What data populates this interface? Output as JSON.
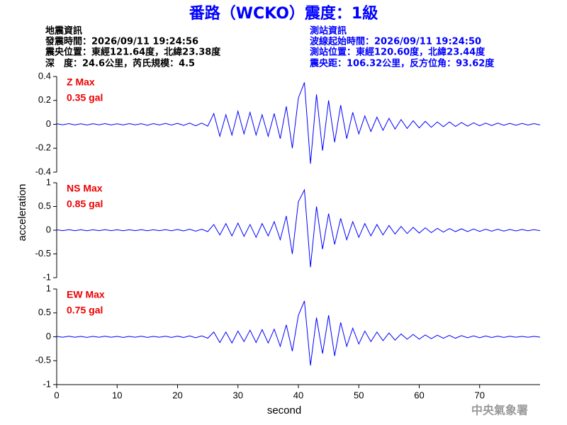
{
  "header": {
    "title": "番路（WCKO）震度：1級",
    "left": [
      "地震資訊",
      "發震時間：2026/09/11 19:24:56",
      "震央位置：東經121.64度，北緯23.38度",
      "深　度：24.6公里，芮氏規模：4.5"
    ],
    "right": [
      "測站資訊",
      "波線起始時間：2026/09/11 19:24:50",
      "測站位置：東經120.60度，北緯23.44度",
      "震央距：106.32公里，反方位角：93.62度"
    ]
  },
  "chart_data": [
    {
      "type": "line",
      "color": "#0000ff",
      "annotation_color": "#ee0000",
      "max_label": "Z Max",
      "max_value_label": "0.35 gal",
      "xlim": [
        0,
        80
      ],
      "ylim": [
        -0.4,
        0.4
      ],
      "yticks": [
        0.4,
        0.2,
        0,
        -0.2,
        -0.4
      ],
      "x": [
        0,
        1,
        2,
        3,
        4,
        5,
        6,
        7,
        8,
        9,
        10,
        11,
        12,
        13,
        14,
        15,
        16,
        17,
        18,
        19,
        20,
        21,
        22,
        23,
        24,
        25,
        26,
        27,
        28,
        29,
        30,
        31,
        32,
        33,
        34,
        35,
        36,
        37,
        38,
        39,
        40,
        41,
        42,
        43,
        44,
        45,
        46,
        47,
        48,
        49,
        50,
        51,
        52,
        53,
        54,
        55,
        56,
        57,
        58,
        59,
        60,
        61,
        62,
        63,
        64,
        65,
        66,
        67,
        68,
        69,
        70,
        71,
        72,
        73,
        74,
        75,
        76,
        77,
        78,
        79,
        80
      ],
      "values": [
        0.005,
        -0.004,
        0.006,
        -0.005,
        0.004,
        -0.006,
        0.005,
        -0.004,
        0.006,
        -0.005,
        0.004,
        -0.005,
        0.006,
        -0.004,
        0.005,
        -0.008,
        0.006,
        -0.005,
        0.007,
        -0.006,
        0.008,
        -0.009,
        0.01,
        -0.012,
        0.01,
        -0.015,
        0.09,
        -0.1,
        0.08,
        -0.09,
        0.11,
        -0.08,
        0.1,
        -0.09,
        0.08,
        -0.1,
        0.09,
        -0.12,
        0.15,
        -0.2,
        0.22,
        0.35,
        -0.33,
        0.25,
        -0.22,
        0.2,
        -0.15,
        0.16,
        -0.12,
        0.1,
        -0.08,
        0.07,
        -0.06,
        0.06,
        -0.05,
        0.05,
        -0.04,
        0.04,
        -0.035,
        0.03,
        -0.03,
        0.025,
        -0.025,
        0.02,
        -0.02,
        0.02,
        -0.018,
        0.015,
        -0.015,
        0.012,
        -0.012,
        0.01,
        -0.01,
        0.01,
        -0.008,
        0.008,
        -0.008,
        0.007,
        -0.006,
        0.006,
        -0.005
      ]
    },
    {
      "type": "line",
      "color": "#0000ff",
      "annotation_color": "#ee0000",
      "max_label": "NS Max",
      "max_value_label": "0.85 gal",
      "ylabel": "acceleration",
      "xlim": [
        0,
        80
      ],
      "ylim": [
        -1,
        1
      ],
      "yticks": [
        1,
        0.5,
        0,
        -0.5,
        -1
      ],
      "x": [
        0,
        1,
        2,
        3,
        4,
        5,
        6,
        7,
        8,
        9,
        10,
        11,
        12,
        13,
        14,
        15,
        16,
        17,
        18,
        19,
        20,
        21,
        22,
        23,
        24,
        25,
        26,
        27,
        28,
        29,
        30,
        31,
        32,
        33,
        34,
        35,
        36,
        37,
        38,
        39,
        40,
        41,
        42,
        43,
        44,
        45,
        46,
        47,
        48,
        49,
        50,
        51,
        52,
        53,
        54,
        55,
        56,
        57,
        58,
        59,
        60,
        61,
        62,
        63,
        64,
        65,
        66,
        67,
        68,
        69,
        70,
        71,
        72,
        73,
        74,
        75,
        76,
        77,
        78,
        79,
        80
      ],
      "values": [
        0.01,
        -0.01,
        0.012,
        -0.01,
        0.01,
        -0.012,
        0.01,
        -0.01,
        0.012,
        -0.01,
        0.01,
        -0.012,
        0.01,
        -0.01,
        0.012,
        -0.012,
        0.01,
        -0.01,
        0.012,
        -0.012,
        0.015,
        -0.015,
        0.02,
        -0.02,
        0.02,
        -0.03,
        0.12,
        -0.1,
        0.14,
        -0.12,
        0.15,
        -0.13,
        0.12,
        -0.15,
        0.14,
        -0.12,
        0.18,
        -0.2,
        0.3,
        -0.5,
        0.6,
        0.85,
        -0.78,
        0.5,
        -0.4,
        0.35,
        -0.3,
        0.25,
        -0.2,
        0.18,
        -0.15,
        0.14,
        -0.12,
        0.12,
        -0.1,
        0.1,
        -0.08,
        0.08,
        -0.07,
        0.06,
        -0.06,
        0.05,
        -0.05,
        0.04,
        -0.04,
        0.035,
        -0.03,
        0.03,
        -0.03,
        0.025,
        -0.025,
        0.02,
        -0.02,
        0.02,
        -0.018,
        0.015,
        -0.015,
        0.015,
        -0.012,
        0.012,
        -0.01
      ]
    },
    {
      "type": "line",
      "color": "#0000ff",
      "annotation_color": "#ee0000",
      "max_label": "EW Max",
      "max_value_label": "0.75 gal",
      "xlabel": "second",
      "xlim": [
        0,
        80
      ],
      "xticks": [
        0,
        10,
        20,
        30,
        40,
        50,
        60,
        70
      ],
      "ylim": [
        -1,
        1
      ],
      "yticks": [
        1,
        0.5,
        0,
        -0.5,
        -1
      ],
      "x": [
        0,
        1,
        2,
        3,
        4,
        5,
        6,
        7,
        8,
        9,
        10,
        11,
        12,
        13,
        14,
        15,
        16,
        17,
        18,
        19,
        20,
        21,
        22,
        23,
        24,
        25,
        26,
        27,
        28,
        29,
        30,
        31,
        32,
        33,
        34,
        35,
        36,
        37,
        38,
        39,
        40,
        41,
        42,
        43,
        44,
        45,
        46,
        47,
        48,
        49,
        50,
        51,
        52,
        53,
        54,
        55,
        56,
        57,
        58,
        59,
        60,
        61,
        62,
        63,
        64,
        65,
        66,
        67,
        68,
        69,
        70,
        71,
        72,
        73,
        74,
        75,
        76,
        77,
        78,
        79,
        80
      ],
      "values": [
        0.01,
        -0.01,
        0.012,
        -0.01,
        0.01,
        -0.012,
        0.01,
        -0.01,
        0.012,
        -0.01,
        0.01,
        -0.012,
        0.01,
        -0.01,
        0.012,
        -0.012,
        0.01,
        -0.01,
        0.012,
        -0.012,
        0.015,
        -0.015,
        0.02,
        -0.02,
        0.02,
        -0.03,
        0.1,
        -0.12,
        0.1,
        -0.13,
        0.12,
        -0.1,
        0.14,
        -0.12,
        0.15,
        -0.13,
        0.16,
        -0.2,
        0.25,
        -0.3,
        0.45,
        0.75,
        -0.6,
        0.4,
        -0.35,
        0.45,
        -0.4,
        0.3,
        -0.2,
        0.18,
        -0.15,
        0.12,
        -0.1,
        0.1,
        -0.08,
        0.08,
        -0.07,
        0.06,
        -0.05,
        0.05,
        -0.05,
        0.04,
        -0.04,
        0.035,
        -0.03,
        0.03,
        -0.03,
        0.025,
        -0.02,
        0.02,
        -0.02,
        0.018,
        -0.015,
        0.015,
        -0.012,
        0.012,
        -0.01,
        0.01,
        -0.01,
        0.01,
        -0.008
      ]
    }
  ],
  "footer": "中央氣象署"
}
